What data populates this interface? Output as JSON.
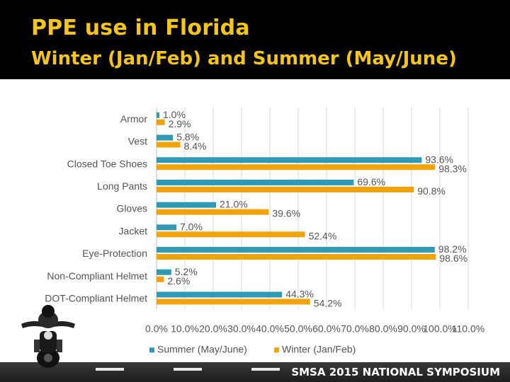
{
  "title": "PPE use in Florida",
  "subtitle": "Winter (Jan/Feb) and Summer (May/June)",
  "footer": "SMSA 2015 NATIONAL SYMPOSIUM",
  "chart_data": {
    "type": "bar",
    "orientation": "horizontal",
    "categories": [
      "Armor",
      "Vest",
      "Closed Toe Shoes",
      "Long Pants",
      "Gloves",
      "Jacket",
      "Eye-Protection",
      "Non-Compliant Helmet",
      "DOT-Compliant Helmet"
    ],
    "series": [
      {
        "name": "Summer (May/June)",
        "color": "#2e9ab3",
        "values": [
          1.0,
          5.8,
          93.6,
          69.6,
          21.0,
          7.0,
          98.2,
          5.2,
          44.3
        ],
        "labels": [
          "1.0%",
          "5.8%",
          "93.6%",
          "69.6%",
          "21.0%",
          "7.0%",
          "98.2%",
          "5.2%",
          "44.3%"
        ]
      },
      {
        "name": "Winter (Jan/Feb)",
        "color": "#f0a30a",
        "values": [
          2.9,
          8.4,
          98.3,
          90.8,
          39.6,
          52.4,
          98.6,
          2.6,
          54.2
        ],
        "labels": [
          "2.9%",
          "8.4%",
          "98.3%",
          "90.8%",
          "39.6%",
          "52.4%",
          "98.6%",
          "2.6%",
          "54.2%"
        ]
      }
    ],
    "xlim": [
      0,
      110
    ],
    "ticks": [
      "0.0%",
      "10.0%",
      "20.0%",
      "30.0%",
      "40.0%",
      "50.0%",
      "60.0%",
      "70.0%",
      "80.0%",
      "90.0%",
      "100.0%",
      "110.0%"
    ],
    "grid": true,
    "legend": "bottom"
  }
}
